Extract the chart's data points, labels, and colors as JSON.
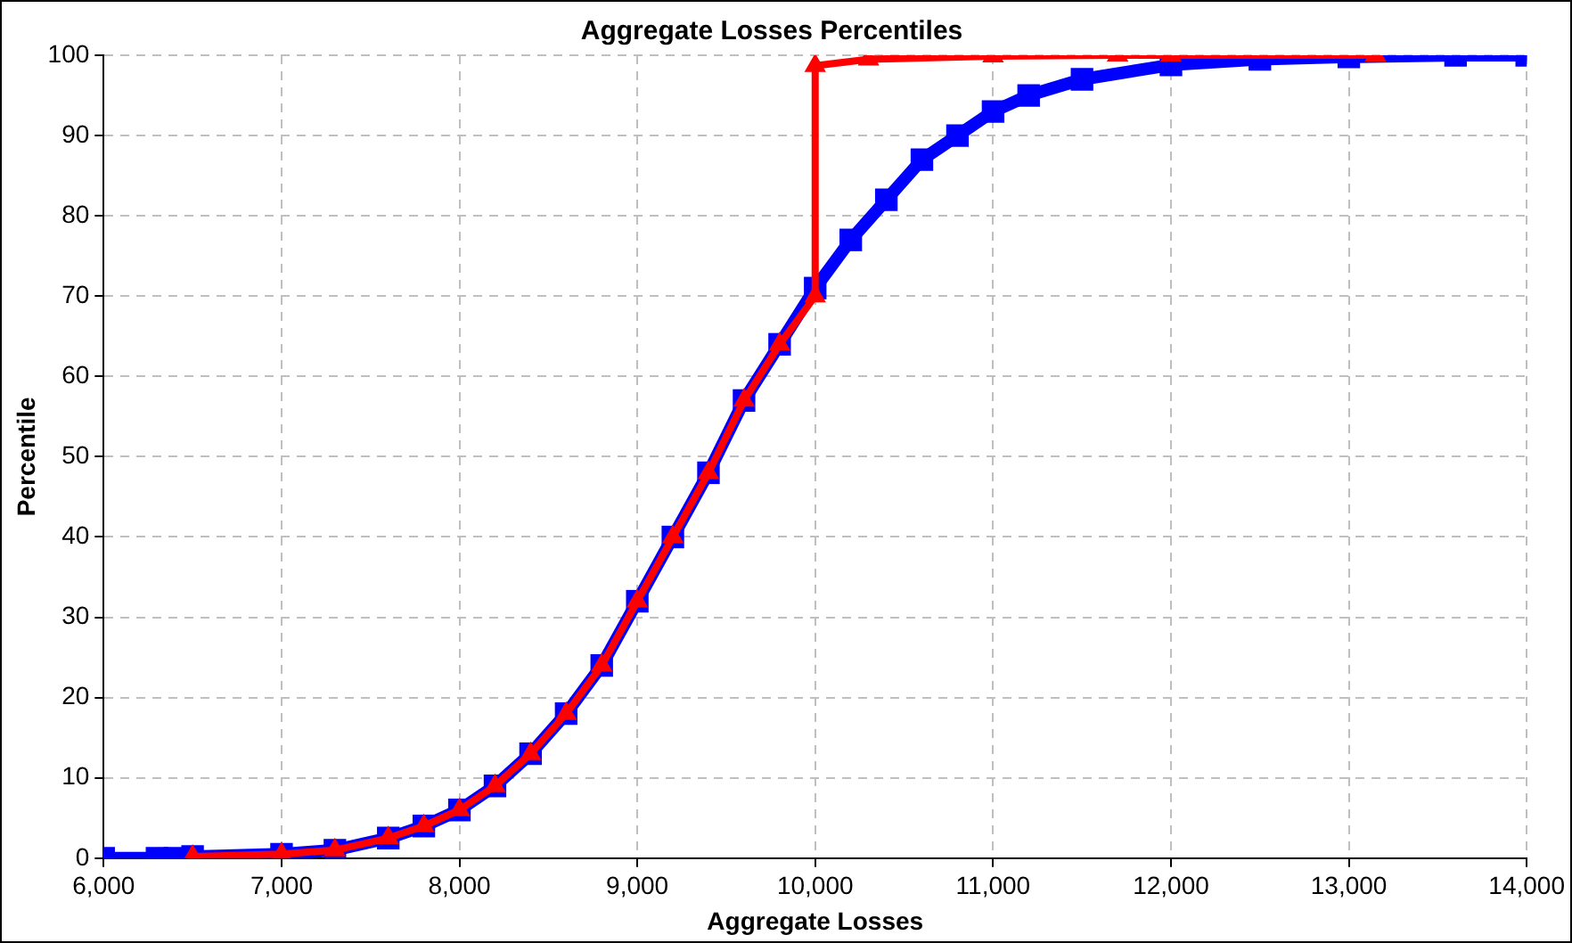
{
  "chart_data": {
    "type": "line",
    "title": "Aggregate Losses Percentiles",
    "xlabel": "Aggregate Losses",
    "ylabel": "Percentile",
    "xlim": [
      6000,
      14000
    ],
    "xticks": [
      {
        "value": 6000,
        "label": "6,000"
      },
      {
        "value": 7000,
        "label": "7,000"
      },
      {
        "value": 8000,
        "label": "8,000"
      },
      {
        "value": 9000,
        "label": "9,000"
      },
      {
        "value": 10000,
        "label": "10,000"
      },
      {
        "value": 11000,
        "label": "11,000"
      },
      {
        "value": 12000,
        "label": "12,000"
      },
      {
        "value": 13000,
        "label": "13,000"
      },
      {
        "value": 14000,
        "label": "14,000"
      }
    ],
    "ylim": [
      0,
      100
    ],
    "yticks": [
      0,
      10,
      20,
      30,
      40,
      50,
      60,
      70,
      80,
      90,
      100
    ],
    "grid": true,
    "legend": false,
    "line_style": "solid",
    "series": [
      {
        "color": "#0000ff",
        "marker": "square",
        "x": [
          6000,
          6300,
          6400,
          6500,
          7000,
          7300,
          7600,
          7800,
          8000,
          8200,
          8400,
          8600,
          8800,
          9000,
          9200,
          9400,
          9600,
          9800,
          10000,
          10200,
          10400,
          10600,
          10800,
          11000,
          11200,
          11500,
          12000,
          12500,
          13000,
          13600,
          14000
        ],
        "values": [
          0,
          0,
          0,
          0.2,
          0.5,
          1,
          2.5,
          4,
          6,
          9,
          13,
          18,
          24,
          32,
          40,
          48,
          57,
          64,
          71,
          77,
          82,
          87,
          90,
          93,
          95,
          97,
          98.8,
          99.5,
          99.8,
          100,
          100
        ]
      },
      {
        "color": "#ff0000",
        "marker": "triangle",
        "x": [
          6500,
          7000,
          7300,
          7600,
          7800,
          8000,
          8200,
          8400,
          8600,
          8800,
          9000,
          9200,
          9400,
          9600,
          9800,
          10000,
          10000,
          10300,
          11000,
          11700,
          12000,
          13150
        ],
        "values": [
          0.2,
          0.5,
          1,
          2.5,
          4,
          6,
          9,
          13,
          18,
          24,
          32,
          40,
          48,
          57,
          64,
          70,
          98.7,
          99.5,
          99.9,
          100,
          100,
          100
        ]
      }
    ]
  }
}
